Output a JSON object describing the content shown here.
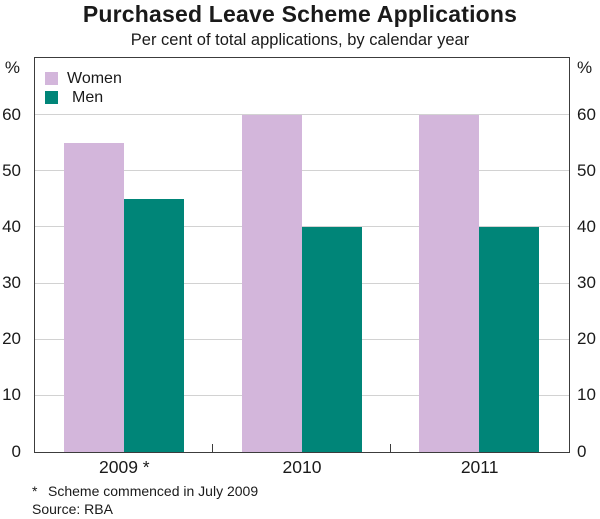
{
  "chart_data": {
    "type": "bar",
    "title": "Purchased Leave Scheme Applications",
    "subtitle": "Per cent of total applications, by calendar year",
    "unit_label": "%",
    "categories": [
      "2009 *",
      "2010",
      "2011"
    ],
    "series": [
      {
        "name": "Women",
        "color": "#d3b6db",
        "values": [
          55,
          60,
          60
        ]
      },
      {
        "name": "Men",
        "color": "#008578",
        "values": [
          45,
          40,
          40
        ]
      }
    ],
    "ylim": [
      0,
      70
    ],
    "yticks": [
      0,
      10,
      20,
      30,
      40,
      50,
      60
    ],
    "grid": true,
    "axis_labels_both_sides": true,
    "legend_position": "top-left",
    "footnote_marker": "*",
    "footnote": "Scheme commenced in July 2009",
    "source": "Source: RBA",
    "colors": {
      "frame": "#3c3c3c",
      "grid": "#d2d2d2",
      "text": "#1a1a1a"
    }
  }
}
